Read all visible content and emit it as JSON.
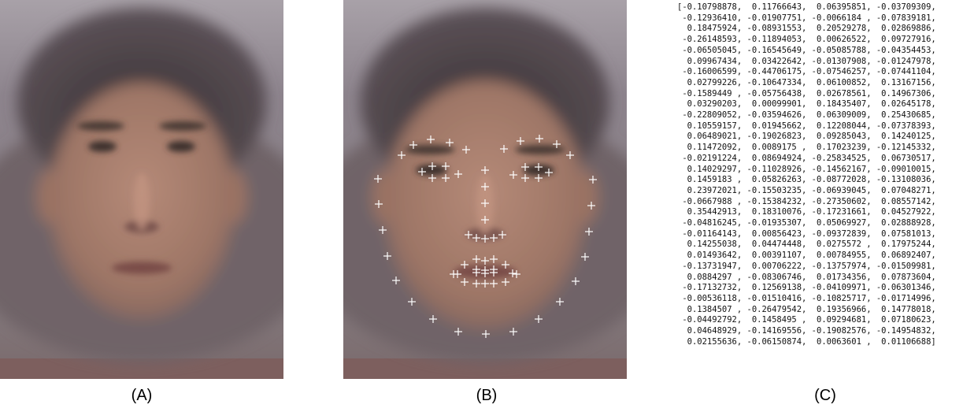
{
  "captions": {
    "a": "(A)",
    "b": "(B)",
    "c": "(C)"
  },
  "colors": {
    "background": "#8a7e84",
    "skin": "#a87e6c",
    "hair": "#2e2729",
    "landmark": "#ffffff"
  },
  "landmark_marker": "cross",
  "feature_vector": [
    "[-0.10798878,  0.11766643,  0.06395851, -0.03709309,",
    " -0.12936410, -0.01907751, -0.0066184 , -0.07839181,",
    "  0.18475924, -0.08931553,  0.20529278,  0.02869886,",
    " -0.26148593, -0.11894053,  0.00626522,  0.09727916,",
    " -0.06505045, -0.16545649, -0.05085788, -0.04354453,",
    "  0.09967434,  0.03422642, -0.01307908, -0.01247978,",
    " -0.16006599, -0.44706175, -0.07546257, -0.07441104,",
    "  0.02799226, -0.10647334,  0.06100852,  0.13167156,",
    " -0.1589449 , -0.05756438,  0.02678561,  0.14967306,",
    "  0.03290203,  0.00099901,  0.18435407,  0.02645178,",
    " -0.22809052, -0.03594626,  0.06309009,  0.25430685,",
    "  0.10559157,  0.01945662,  0.12208044, -0.07378393,",
    "  0.06489021, -0.19026823,  0.09285043,  0.14240125,",
    "  0.11472092,  0.0089175 ,  0.17023239, -0.12145332,",
    " -0.02191224,  0.08694924, -0.25834525,  0.06730517,",
    "  0.14029297, -0.11028926, -0.14562167, -0.09010015,",
    "  0.1459183 ,  0.05826263, -0.08772028, -0.13108036,",
    "  0.23972021, -0.15503235, -0.06939045,  0.07048271,",
    " -0.0667988 , -0.15384232, -0.27350602,  0.08557142,",
    "  0.35442913,  0.18310076, -0.17231661,  0.04527922,",
    " -0.04816245, -0.01935307,  0.05069927,  0.02888928,",
    " -0.01164143,  0.00856423, -0.09372839,  0.07581013,",
    "  0.14255038,  0.04474448,  0.0275572 ,  0.17975244,",
    "  0.01493642,  0.00391107,  0.00784955,  0.06892407,",
    " -0.13731947,  0.00706222, -0.13757974, -0.01509981,",
    "  0.0884297 , -0.08306746,  0.01734356,  0.07873604,",
    " -0.17132732,  0.12569138, -0.04109971, -0.06301346,",
    " -0.00536118, -0.01510416, -0.10825717, -0.01714996,",
    "  0.1384507 , -0.26479542,  0.19356966,  0.14778018,",
    " -0.04492792,  0.1458495 ,  0.09294681,  0.07180623,",
    "  0.04648929, -0.14169556, -0.19082576, -0.14954832,",
    "  0.02155636, -0.06150874,  0.0063601 ,  0.01106688]"
  ]
}
